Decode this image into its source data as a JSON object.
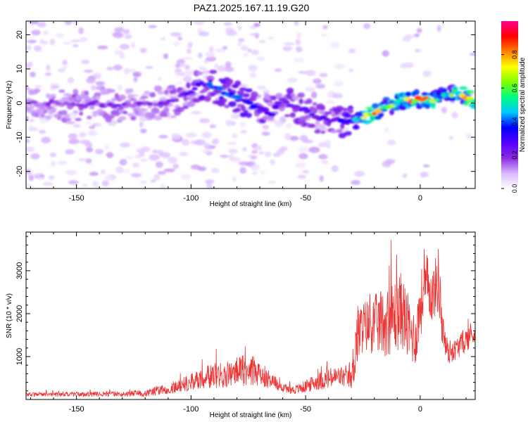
{
  "title": "PAZ1.2025.167.11.19.G20",
  "chart_data": [
    {
      "type": "heatmap",
      "xlabel": "Height of straight line (km)",
      "ylabel": "Frequency (Hz)",
      "xlim": [
        -172,
        24
      ],
      "ylim": [
        -25,
        24
      ],
      "xticks": [
        -150,
        -100,
        -50,
        0
      ],
      "yticks": [
        -20,
        -10,
        0,
        10,
        20
      ],
      "colorbar": {
        "label": "Normalized spectral amplitude",
        "range": [
          0,
          1
        ],
        "ticks": [
          0.0,
          0.2,
          0.4,
          0.6,
          0.8
        ],
        "colormap": [
          "#ffffff",
          "#d9b8ff",
          "#8a2be2",
          "#5500ff",
          "#0000ff",
          "#00c8ff",
          "#00ff80",
          "#80ff00",
          "#ffff00",
          "#ff8000",
          "#ff0000",
          "#ff0090"
        ]
      },
      "ridge": {
        "x": [
          -170,
          -160,
          -150,
          -140,
          -130,
          -120,
          -110,
          -100,
          -95,
          -90,
          -85,
          -80,
          -75,
          -70,
          -65,
          -60,
          -55,
          -50,
          -45,
          -40,
          -35,
          -30,
          -25,
          -20,
          -15,
          -10,
          -5,
          0,
          5,
          10,
          15,
          20,
          24
        ],
        "frequency": [
          0,
          0,
          -1,
          0,
          -1,
          0,
          0,
          3,
          6,
          5,
          3,
          2,
          0,
          -1,
          -3,
          1,
          -1,
          -2,
          -4,
          -5,
          -5,
          -6,
          -4,
          -3,
          -1,
          0,
          1,
          1,
          1,
          2,
          3,
          2,
          1
        ],
        "peak_amplitude": [
          0.2,
          0.2,
          0.25,
          0.2,
          0.25,
          0.2,
          0.25,
          0.3,
          0.35,
          0.45,
          0.45,
          0.45,
          0.45,
          0.35,
          0.3,
          0.3,
          0.3,
          0.35,
          0.3,
          0.3,
          0.35,
          0.45,
          0.8,
          0.9,
          0.6,
          0.75,
          0.85,
          0.9,
          0.8,
          0.6,
          0.7,
          0.85,
          0.9
        ]
      }
    },
    {
      "type": "line",
      "xlabel": "Height of straight line (km)",
      "ylabel": "SNR (10 * v/v)",
      "xlim": [
        -172,
        24
      ],
      "ylim": [
        0,
        3900
      ],
      "xticks": [
        -150,
        -100,
        -50,
        0
      ],
      "yticks": [
        1000,
        2000,
        3000
      ],
      "color": "#ee3333",
      "envelope": {
        "x": [
          -172,
          -150,
          -130,
          -120,
          -110,
          -100,
          -95,
          -90,
          -85,
          -80,
          -75,
          -70,
          -65,
          -60,
          -55,
          -50,
          -45,
          -40,
          -35,
          -30,
          -29,
          -28,
          -25,
          -20,
          -15,
          -10,
          -8,
          -5,
          -2,
          0,
          3,
          5,
          8,
          10,
          12,
          15,
          20,
          24
        ],
        "mean": [
          120,
          120,
          125,
          150,
          250,
          400,
          500,
          550,
          580,
          650,
          700,
          600,
          450,
          280,
          220,
          300,
          420,
          480,
          540,
          450,
          900,
          1400,
          1700,
          1750,
          1800,
          2000,
          2100,
          1600,
          1400,
          2200,
          2700,
          2400,
          2800,
          1500,
          1100,
          1150,
          1400,
          1550
        ],
        "amplitude": [
          50,
          55,
          60,
          80,
          120,
          200,
          250,
          300,
          300,
          350,
          380,
          300,
          200,
          120,
          100,
          150,
          200,
          250,
          250,
          200,
          700,
          800,
          600,
          700,
          800,
          900,
          900,
          800,
          600,
          800,
          700,
          600,
          800,
          500,
          300,
          250,
          300,
          250
        ]
      }
    }
  ]
}
